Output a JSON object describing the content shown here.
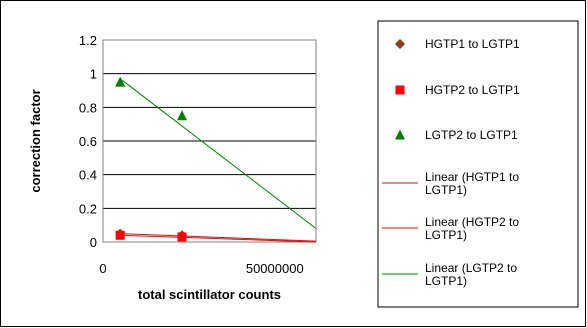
{
  "chart_data": {
    "type": "scatter",
    "title": "",
    "xlabel": "total scintillator counts",
    "ylabel": "correction factor",
    "xlim": [
      0,
      62000000
    ],
    "ylim": [
      0,
      1.2
    ],
    "y_ticks": [
      "0",
      "0.2",
      "0.4",
      "0.6",
      "0.8",
      "1",
      "1.2"
    ],
    "x_ticks": [
      "0",
      "50000000"
    ],
    "x_tick_values": [
      0,
      50000000
    ],
    "grid": "horizontal major gridlines",
    "legend_position": "right",
    "series": [
      {
        "name": "HGTP1 to LGTP1",
        "marker": "diamond",
        "color": "#8B3A1A",
        "points": [
          [
            5000000,
            0.05
          ],
          [
            23000000,
            0.04
          ]
        ]
      },
      {
        "name": "HGTP2 to LGTP1",
        "marker": "square",
        "color": "#FF0000",
        "points": [
          [
            5000000,
            0.04
          ],
          [
            23000000,
            0.03
          ]
        ]
      },
      {
        "name": "LGTP2 to LGTP1",
        "marker": "triangle",
        "color": "#008000",
        "points": [
          [
            5000000,
            0.95
          ],
          [
            23000000,
            0.75
          ]
        ]
      }
    ],
    "trendlines": [
      {
        "name": "Linear (HGTP1 to LGTP1)",
        "lines": [
          "Linear (HGTP1 to",
          "LGTP1)"
        ],
        "color": "#B22222",
        "from": [
          5000000,
          0.05
        ],
        "to": [
          62000000,
          0.005
        ]
      },
      {
        "name": "Linear (HGTP2 to LGTP1)",
        "lines": [
          "Linear (HGTP2 to",
          "LGTP1)"
        ],
        "color": "#FF0000",
        "from": [
          5000000,
          0.04
        ],
        "to": [
          62000000,
          0.0
        ]
      },
      {
        "name": "Linear (LGTP2 to LGTP1)",
        "lines": [
          "Linear (LGTP2 to",
          "LGTP1)"
        ],
        "color": "#008000",
        "from": [
          5000000,
          0.97
        ],
        "to": [
          62000000,
          0.08
        ]
      }
    ]
  }
}
